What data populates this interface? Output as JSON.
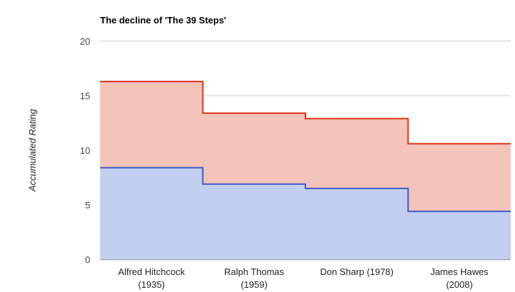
{
  "chart_data": {
    "type": "area",
    "title": "The decline of 'The 39 Steps'",
    "xlabel": "",
    "ylabel": "Accumulated Rating",
    "ylim": [
      0,
      20
    ],
    "yticks": [
      0,
      5,
      10,
      15,
      20
    ],
    "grid": true,
    "stepped": true,
    "stacked": true,
    "categories": [
      [
        "Alfred Hitchcock",
        "(1935)"
      ],
      [
        "Ralph Thomas",
        "(1959)"
      ],
      [
        "Don Sharp (1978)"
      ],
      [
        "James Hawes",
        "(2008)"
      ]
    ],
    "series": [
      {
        "values": [
          8.4,
          6.9,
          6.5,
          4.4
        ],
        "line_color": "#3a5bc7",
        "fill_color": "#c3cff0"
      },
      {
        "values": [
          7.9,
          6.5,
          6.4,
          6.2
        ],
        "line_color": "#dd3311",
        "fill_color": "#f4c3b9"
      }
    ]
  }
}
